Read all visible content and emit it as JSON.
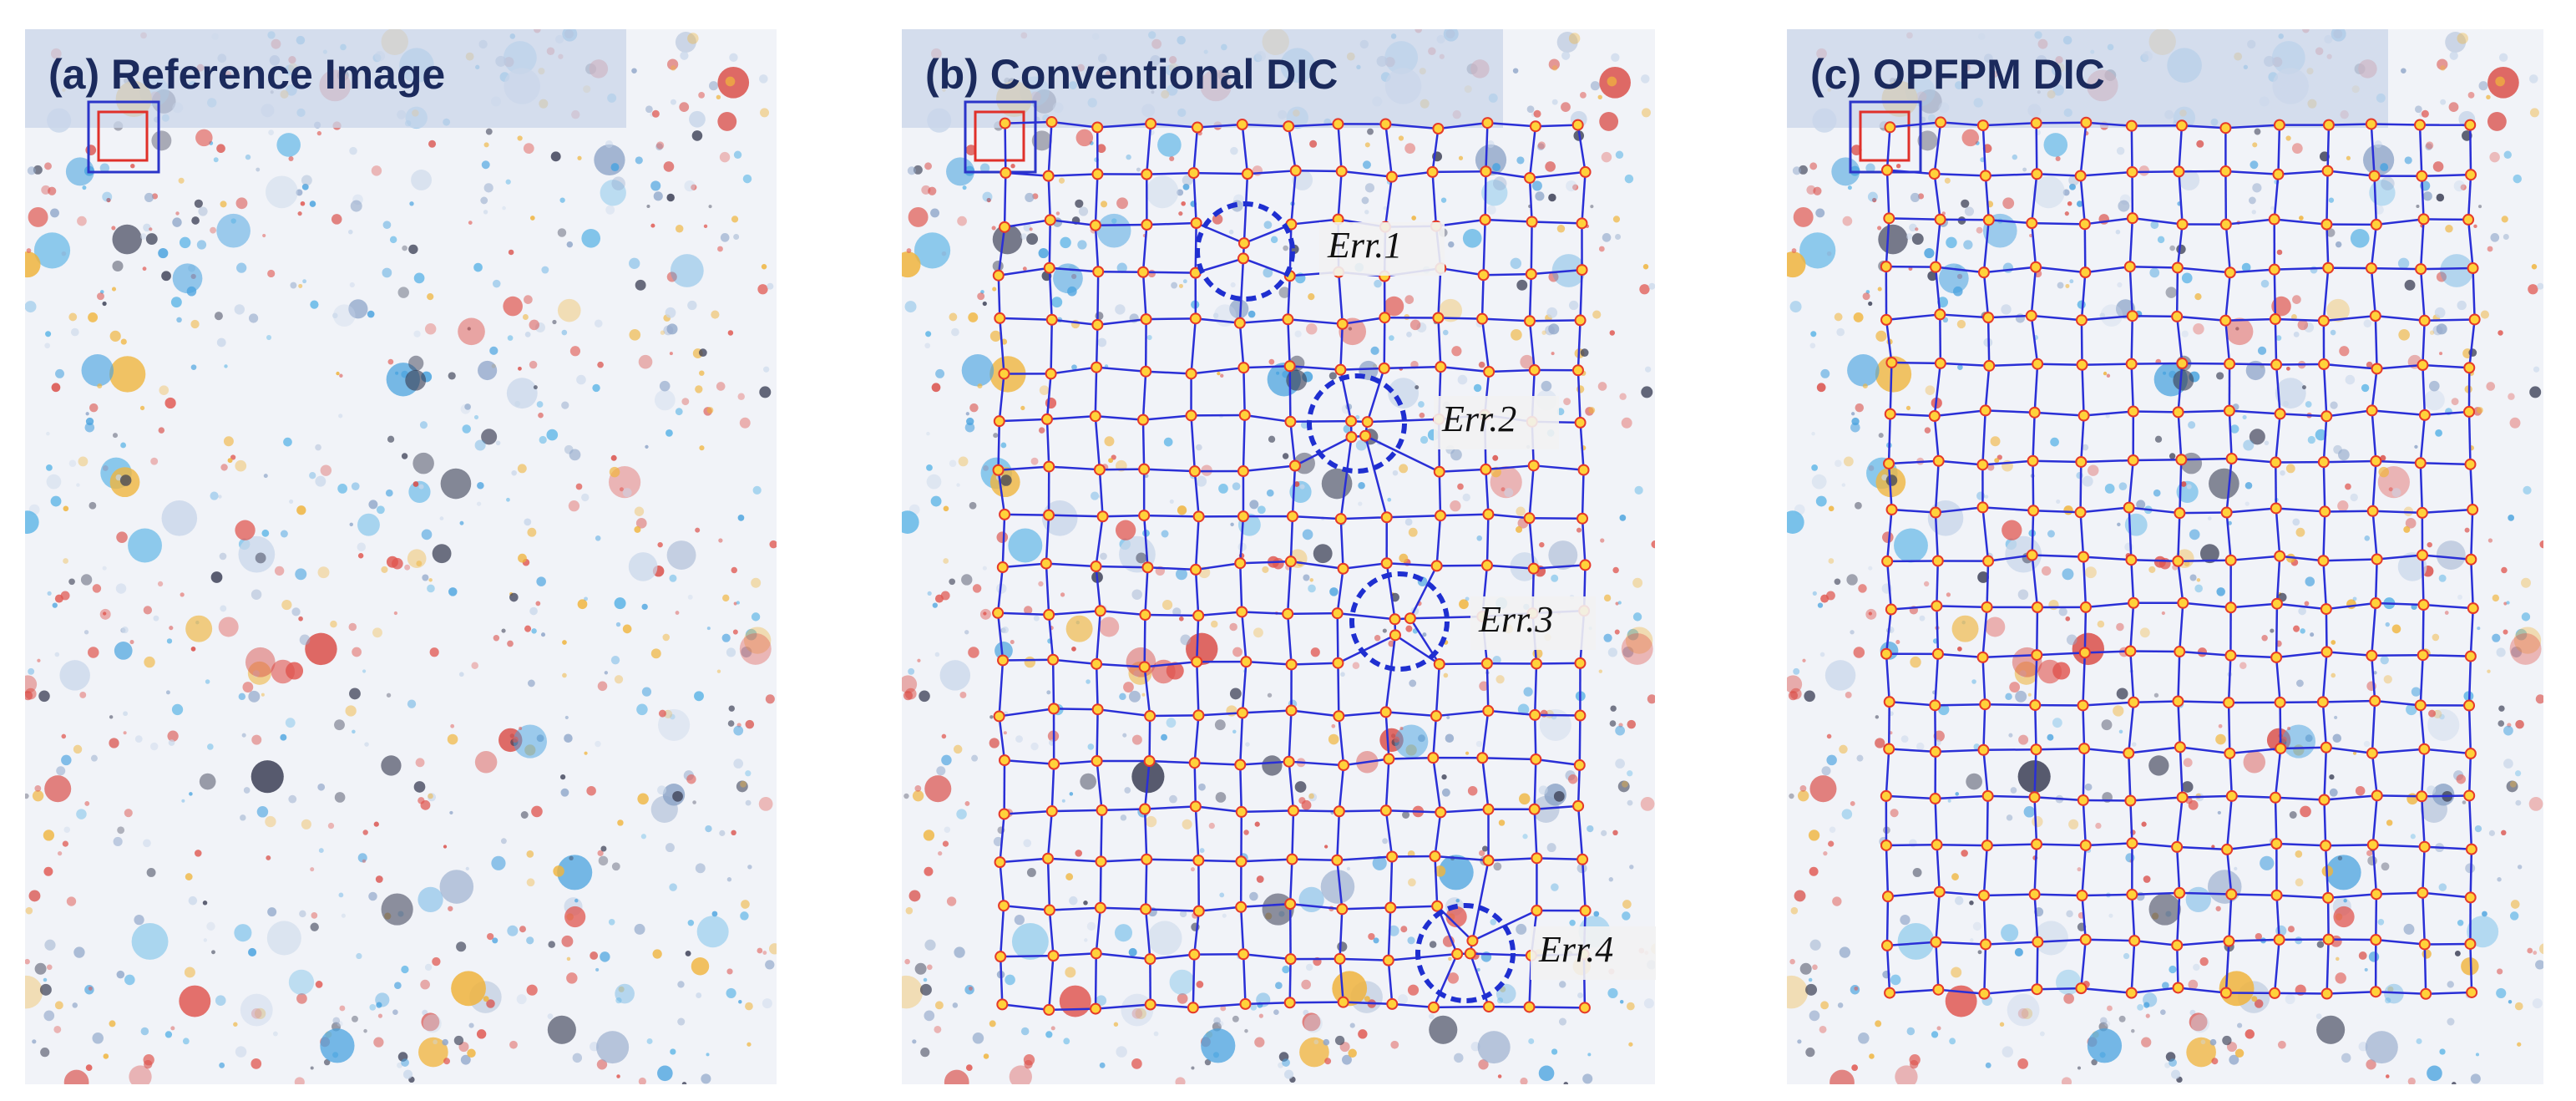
{
  "panels": [
    {
      "title": "(a) Reference Image"
    },
    {
      "title": "(b) Conventional DIC",
      "errors": [
        "Err.1",
        "Err.2",
        "Err.3",
        "Err.4"
      ]
    },
    {
      "title": "(c) OPFPM DIC"
    }
  ]
}
